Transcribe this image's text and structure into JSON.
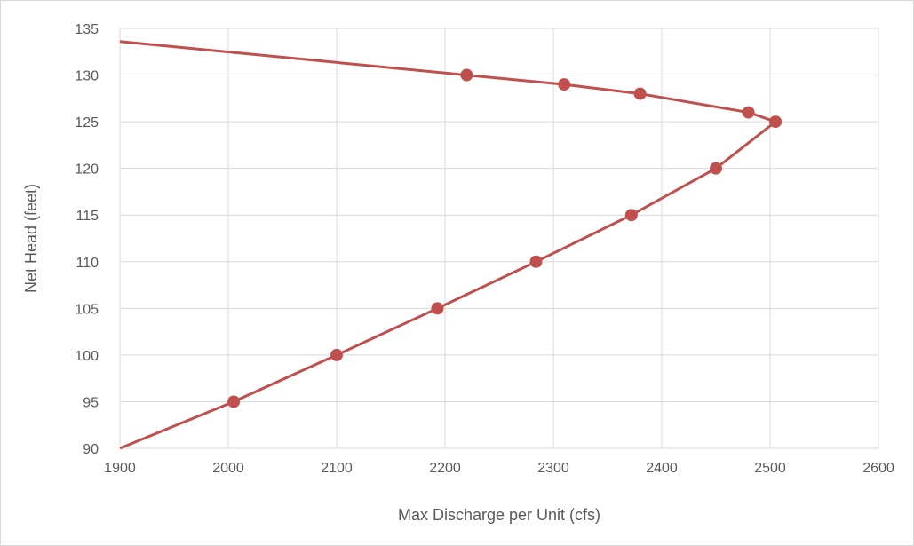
{
  "chart_data": {
    "type": "scatter",
    "xlabel": "Max Discharge per Unit (cfs)",
    "ylabel": "Net Head (feet)",
    "xlim": [
      1900,
      2600
    ],
    "ylim": [
      90,
      135
    ],
    "x_ticks": [
      "1900",
      "2000",
      "2100",
      "2200",
      "2300",
      "2400",
      "2500",
      "2600"
    ],
    "y_ticks": [
      "90",
      "95",
      "100",
      "105",
      "110",
      "115",
      "120",
      "125",
      "130",
      "135"
    ],
    "grid": "on",
    "legend": "none",
    "series": [
      {
        "color": "#C0504D",
        "line_points": [
          {
            "x": 1900,
            "y": 90
          },
          {
            "x": 2005,
            "y": 95
          },
          {
            "x": 2100,
            "y": 100
          },
          {
            "x": 2193,
            "y": 105
          },
          {
            "x": 2284,
            "y": 110
          },
          {
            "x": 2372,
            "y": 115
          },
          {
            "x": 2450,
            "y": 120
          },
          {
            "x": 2505,
            "y": 125
          },
          {
            "x": 2480,
            "y": 126
          },
          {
            "x": 2380,
            "y": 128
          },
          {
            "x": 2310,
            "y": 129
          },
          {
            "x": 2220,
            "y": 130
          },
          {
            "x": 1900,
            "y": 133.6
          }
        ],
        "markers": [
          {
            "x": 2005,
            "y": 95
          },
          {
            "x": 2100,
            "y": 100
          },
          {
            "x": 2193,
            "y": 105
          },
          {
            "x": 2284,
            "y": 110
          },
          {
            "x": 2372,
            "y": 115
          },
          {
            "x": 2450,
            "y": 120
          },
          {
            "x": 2505,
            "y": 125
          },
          {
            "x": 2480,
            "y": 126
          },
          {
            "x": 2380,
            "y": 128
          },
          {
            "x": 2310,
            "y": 129
          },
          {
            "x": 2220,
            "y": 130
          }
        ]
      }
    ],
    "grid_color": "#d9d9d9"
  }
}
